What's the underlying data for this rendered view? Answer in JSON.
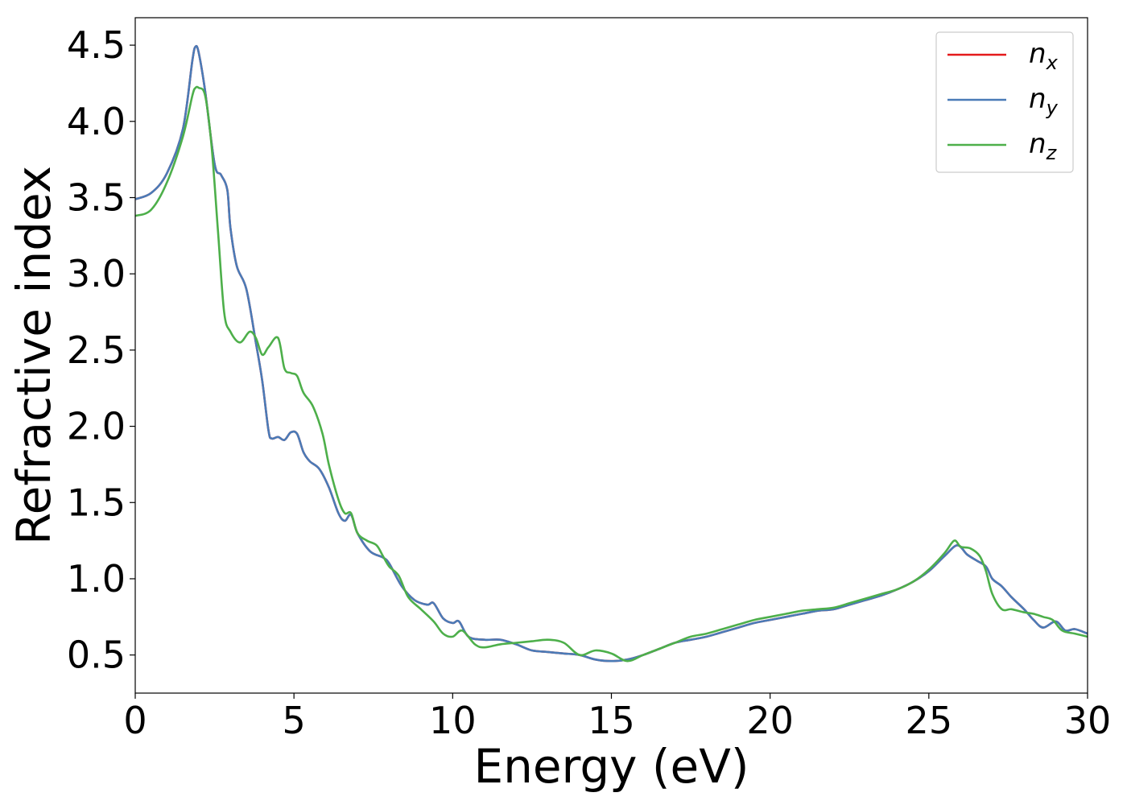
{
  "chart_data": {
    "type": "line",
    "xlabel": "Energy (eV)",
    "ylabel": "Refractive index",
    "xlim": [
      0,
      30
    ],
    "ylim": [
      0.25,
      4.68
    ],
    "xticks": [
      0,
      5,
      10,
      15,
      20,
      25,
      30
    ],
    "xtick_labels": [
      "0",
      "5",
      "10",
      "15",
      "20",
      "25",
      "30"
    ],
    "yticks": [
      0.5,
      1.0,
      1.5,
      2.0,
      2.5,
      3.0,
      3.5,
      4.0,
      4.5
    ],
    "ytick_labels": [
      "0.5",
      "1.0",
      "1.5",
      "2.0",
      "2.5",
      "3.0",
      "3.5",
      "4.0",
      "4.5"
    ],
    "grid": false,
    "legend_position": "top-right",
    "series": [
      {
        "name": "n_x",
        "label_base": "n",
        "label_sub": "x",
        "color": "#e41a1c",
        "x": [
          0,
          0.5,
          1.0,
          1.5,
          1.8,
          1.9,
          2.0,
          2.2,
          2.5,
          2.7,
          2.9,
          3.0,
          3.2,
          3.5,
          3.8,
          4.0,
          4.2,
          4.3,
          4.5,
          4.7,
          4.9,
          5.1,
          5.3,
          5.5,
          5.8,
          6.1,
          6.4,
          6.6,
          6.8,
          7.0,
          7.4,
          7.8,
          8.0,
          8.4,
          8.8,
          9.2,
          9.4,
          9.7,
          10.0,
          10.2,
          10.5,
          11.0,
          11.5,
          12.0,
          12.5,
          13.0,
          13.5,
          14.0,
          14.5,
          15.0,
          15.5,
          16.0,
          16.5,
          17.0,
          17.5,
          18.0,
          18.5,
          19.0,
          19.5,
          20.0,
          20.5,
          21.0,
          21.5,
          22.0,
          22.5,
          23.0,
          23.5,
          24.0,
          24.5,
          25.0,
          25.5,
          25.9,
          26.2,
          26.5,
          26.8,
          27.0,
          27.3,
          27.6,
          28.0,
          28.3,
          28.6,
          29.0,
          29.3,
          29.6,
          30.0
        ],
        "y": [
          3.49,
          3.53,
          3.66,
          3.95,
          4.4,
          4.49,
          4.45,
          4.2,
          3.72,
          3.65,
          3.55,
          3.3,
          3.05,
          2.9,
          2.55,
          2.3,
          1.97,
          1.92,
          1.93,
          1.91,
          1.96,
          1.95,
          1.83,
          1.77,
          1.72,
          1.6,
          1.43,
          1.38,
          1.42,
          1.3,
          1.18,
          1.14,
          1.1,
          0.95,
          0.86,
          0.83,
          0.84,
          0.74,
          0.71,
          0.72,
          0.62,
          0.6,
          0.6,
          0.57,
          0.53,
          0.52,
          0.51,
          0.5,
          0.47,
          0.46,
          0.47,
          0.5,
          0.54,
          0.58,
          0.6,
          0.62,
          0.65,
          0.68,
          0.71,
          0.73,
          0.75,
          0.77,
          0.79,
          0.8,
          0.83,
          0.86,
          0.89,
          0.93,
          0.98,
          1.05,
          1.15,
          1.22,
          1.16,
          1.12,
          1.08,
          1.0,
          0.95,
          0.88,
          0.8,
          0.73,
          0.68,
          0.72,
          0.66,
          0.67,
          0.64
        ]
      },
      {
        "name": "n_y",
        "label_base": "n",
        "label_sub": "y",
        "color": "#4a7bb7",
        "x": [
          0,
          0.5,
          1.0,
          1.5,
          1.8,
          1.9,
          2.0,
          2.2,
          2.5,
          2.7,
          2.9,
          3.0,
          3.2,
          3.5,
          3.8,
          4.0,
          4.2,
          4.3,
          4.5,
          4.7,
          4.9,
          5.1,
          5.3,
          5.5,
          5.8,
          6.1,
          6.4,
          6.6,
          6.8,
          7.0,
          7.4,
          7.8,
          8.0,
          8.4,
          8.8,
          9.2,
          9.4,
          9.7,
          10.0,
          10.2,
          10.5,
          11.0,
          11.5,
          12.0,
          12.5,
          13.0,
          13.5,
          14.0,
          14.5,
          15.0,
          15.5,
          16.0,
          16.5,
          17.0,
          17.5,
          18.0,
          18.5,
          19.0,
          19.5,
          20.0,
          20.5,
          21.0,
          21.5,
          22.0,
          22.5,
          23.0,
          23.5,
          24.0,
          24.5,
          25.0,
          25.5,
          25.9,
          26.2,
          26.5,
          26.8,
          27.0,
          27.3,
          27.6,
          28.0,
          28.3,
          28.6,
          29.0,
          29.3,
          29.6,
          30.0
        ],
        "y": [
          3.49,
          3.53,
          3.66,
          3.95,
          4.4,
          4.49,
          4.45,
          4.2,
          3.72,
          3.65,
          3.55,
          3.3,
          3.05,
          2.9,
          2.55,
          2.3,
          1.97,
          1.92,
          1.93,
          1.91,
          1.96,
          1.95,
          1.83,
          1.77,
          1.72,
          1.6,
          1.43,
          1.38,
          1.42,
          1.3,
          1.18,
          1.14,
          1.1,
          0.95,
          0.86,
          0.83,
          0.84,
          0.74,
          0.71,
          0.72,
          0.62,
          0.6,
          0.6,
          0.57,
          0.53,
          0.52,
          0.51,
          0.5,
          0.47,
          0.46,
          0.47,
          0.5,
          0.54,
          0.58,
          0.6,
          0.62,
          0.65,
          0.68,
          0.71,
          0.73,
          0.75,
          0.77,
          0.79,
          0.8,
          0.83,
          0.86,
          0.89,
          0.93,
          0.98,
          1.05,
          1.15,
          1.22,
          1.16,
          1.12,
          1.08,
          1.0,
          0.95,
          0.88,
          0.8,
          0.73,
          0.68,
          0.72,
          0.66,
          0.67,
          0.64
        ]
      },
      {
        "name": "n_z",
        "label_base": "n",
        "label_sub": "z",
        "color": "#4daf4a",
        "x": [
          0,
          0.5,
          1.0,
          1.5,
          1.8,
          1.9,
          2.0,
          2.2,
          2.4,
          2.6,
          2.8,
          3.0,
          3.3,
          3.6,
          3.8,
          4.0,
          4.2,
          4.5,
          4.7,
          4.9,
          5.1,
          5.3,
          5.6,
          5.9,
          6.1,
          6.4,
          6.6,
          6.8,
          7.0,
          7.3,
          7.6,
          7.8,
          8.0,
          8.3,
          8.6,
          9.0,
          9.4,
          9.7,
          10.0,
          10.3,
          10.7,
          11.0,
          11.5,
          12.0,
          12.5,
          13.0,
          13.5,
          14.0,
          14.5,
          15.0,
          15.5,
          16.0,
          16.5,
          17.0,
          17.5,
          18.0,
          18.5,
          19.0,
          19.5,
          20.0,
          20.5,
          21.0,
          21.5,
          22.0,
          22.5,
          23.0,
          23.5,
          24.0,
          24.5,
          25.0,
          25.5,
          25.8,
          26.0,
          26.3,
          26.6,
          26.8,
          27.0,
          27.3,
          27.6,
          28.0,
          28.3,
          28.6,
          28.9,
          29.2,
          29.6,
          30.0
        ],
        "y": [
          3.38,
          3.42,
          3.6,
          3.9,
          4.17,
          4.22,
          4.22,
          4.17,
          3.85,
          3.3,
          2.75,
          2.62,
          2.55,
          2.62,
          2.58,
          2.47,
          2.52,
          2.58,
          2.38,
          2.35,
          2.33,
          2.22,
          2.13,
          1.95,
          1.75,
          1.52,
          1.43,
          1.43,
          1.3,
          1.25,
          1.22,
          1.15,
          1.08,
          1.02,
          0.88,
          0.8,
          0.72,
          0.64,
          0.62,
          0.66,
          0.57,
          0.55,
          0.57,
          0.58,
          0.59,
          0.6,
          0.58,
          0.5,
          0.53,
          0.51,
          0.46,
          0.5,
          0.54,
          0.58,
          0.62,
          0.64,
          0.67,
          0.7,
          0.73,
          0.75,
          0.77,
          0.79,
          0.8,
          0.81,
          0.84,
          0.87,
          0.9,
          0.93,
          0.98,
          1.06,
          1.17,
          1.25,
          1.21,
          1.2,
          1.15,
          1.05,
          0.9,
          0.8,
          0.8,
          0.78,
          0.77,
          0.75,
          0.73,
          0.66,
          0.64,
          0.62
        ]
      }
    ]
  }
}
